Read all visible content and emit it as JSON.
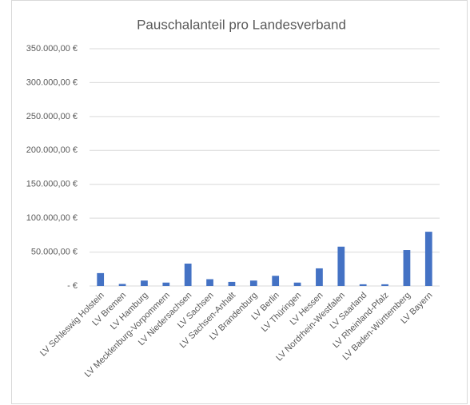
{
  "chart_data": {
    "type": "bar",
    "title": "Pauschalanteil pro Landesverband",
    "categories": [
      "LV Schleswig Holstein",
      "LV Bremen",
      "LV Hamburg",
      "LV Mecklenburg-Vorpommern",
      "LV Niedersachsen",
      "LV Sachsen",
      "LV Sachsen-Anhalt",
      "LV Brandenburg",
      "LV Berlin",
      "LV Thüringen",
      "LV Hessen",
      "LV Nordrhein-Westfalen",
      "LV Saarland",
      "LV Rheinland-Pfalz",
      "LV Baden-Württemberg",
      "LV Bayern"
    ],
    "values": [
      19000,
      3000,
      8000,
      5000,
      33000,
      10000,
      6000,
      8000,
      15000,
      5000,
      26000,
      58000,
      2500,
      2500,
      53000,
      80000
    ],
    "color": "#4472c4",
    "ylim": [
      0,
      350000
    ],
    "yticks": [
      {
        "value": 0,
        "label": "- €"
      },
      {
        "value": 50000,
        "label": "50.000,00 €"
      },
      {
        "value": 100000,
        "label": "100.000,00 €"
      },
      {
        "value": 150000,
        "label": "150.000,00 €"
      },
      {
        "value": 200000,
        "label": "200.000,00 €"
      },
      {
        "value": 250000,
        "label": "250.000,00 €"
      },
      {
        "value": 300000,
        "label": "300.000,00 €"
      },
      {
        "value": 350000,
        "label": "350.000,00 €"
      }
    ],
    "grid": true
  }
}
